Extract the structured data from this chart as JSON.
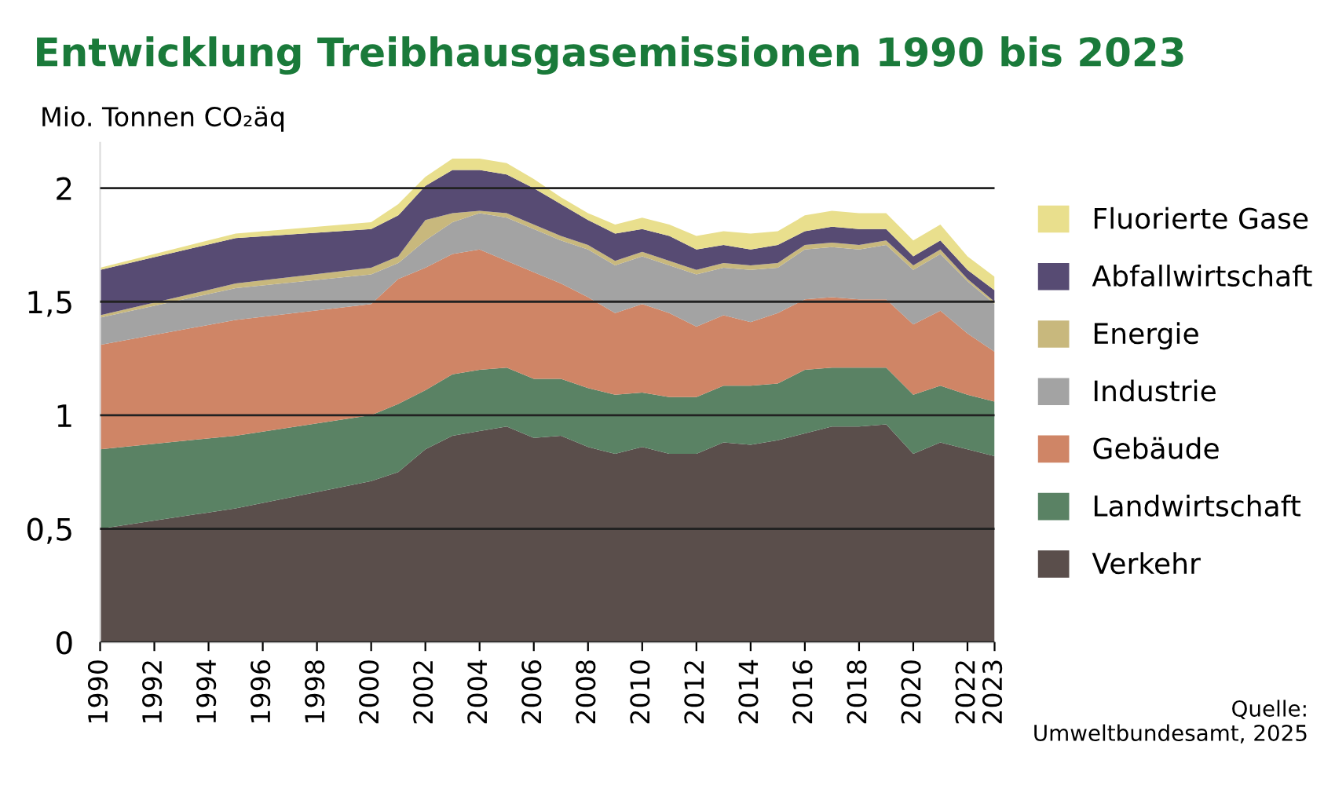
{
  "chart_data": {
    "type": "area",
    "stacked": true,
    "title": "Entwicklung Treibhausgasemissionen 1990 bis 2023",
    "ylabel": "Mio. Tonnen CO₂äq",
    "x": [
      1990,
      1995,
      2000,
      2001,
      2002,
      2003,
      2004,
      2005,
      2006,
      2007,
      2008,
      2009,
      2010,
      2011,
      2012,
      2013,
      2014,
      2015,
      2016,
      2017,
      2018,
      2019,
      2020,
      2021,
      2022,
      2023
    ],
    "series": [
      {
        "name": "Verkehr",
        "color": "#5a4e4b",
        "values": [
          0.5,
          0.59,
          0.71,
          0.75,
          0.85,
          0.91,
          0.93,
          0.95,
          0.9,
          0.91,
          0.86,
          0.83,
          0.86,
          0.83,
          0.83,
          0.88,
          0.87,
          0.89,
          0.92,
          0.95,
          0.95,
          0.96,
          0.83,
          0.88,
          0.85,
          0.82
        ]
      },
      {
        "name": "Landwirtschaft",
        "color": "#5a8264",
        "values": [
          0.35,
          0.32,
          0.29,
          0.3,
          0.26,
          0.27,
          0.27,
          0.26,
          0.26,
          0.25,
          0.26,
          0.26,
          0.24,
          0.25,
          0.25,
          0.25,
          0.26,
          0.25,
          0.28,
          0.26,
          0.26,
          0.25,
          0.26,
          0.25,
          0.24,
          0.24
        ]
      },
      {
        "name": "Gebäude",
        "color": "#cf8566",
        "values": [
          0.46,
          0.51,
          0.49,
          0.55,
          0.54,
          0.53,
          0.53,
          0.47,
          0.47,
          0.42,
          0.4,
          0.36,
          0.39,
          0.37,
          0.31,
          0.31,
          0.28,
          0.31,
          0.31,
          0.31,
          0.3,
          0.3,
          0.31,
          0.33,
          0.27,
          0.22
        ]
      },
      {
        "name": "Industrie",
        "color": "#a3a3a3",
        "values": [
          0.12,
          0.14,
          0.13,
          0.07,
          0.12,
          0.14,
          0.16,
          0.19,
          0.19,
          0.19,
          0.21,
          0.21,
          0.21,
          0.21,
          0.23,
          0.21,
          0.23,
          0.2,
          0.22,
          0.22,
          0.22,
          0.24,
          0.24,
          0.25,
          0.23,
          0.21
        ]
      },
      {
        "name": "Energie",
        "color": "#c8b87d",
        "values": [
          0.01,
          0.02,
          0.03,
          0.03,
          0.09,
          0.04,
          0.01,
          0.02,
          0.02,
          0.02,
          0.02,
          0.02,
          0.02,
          0.02,
          0.02,
          0.02,
          0.02,
          0.02,
          0.02,
          0.02,
          0.02,
          0.02,
          0.02,
          0.02,
          0.01,
          0.01
        ]
      },
      {
        "name": "Abfallwirtschaft",
        "color": "#574b73",
        "values": [
          0.2,
          0.2,
          0.17,
          0.18,
          0.15,
          0.19,
          0.18,
          0.17,
          0.16,
          0.14,
          0.11,
          0.12,
          0.1,
          0.11,
          0.09,
          0.08,
          0.07,
          0.08,
          0.06,
          0.07,
          0.07,
          0.05,
          0.04,
          0.04,
          0.04,
          0.05
        ]
      },
      {
        "name": "Fluorierte Gase",
        "color": "#e9df8d",
        "values": [
          0.01,
          0.02,
          0.03,
          0.05,
          0.04,
          0.05,
          0.05,
          0.05,
          0.04,
          0.03,
          0.03,
          0.04,
          0.05,
          0.05,
          0.06,
          0.06,
          0.07,
          0.06,
          0.07,
          0.07,
          0.07,
          0.07,
          0.07,
          0.07,
          0.06,
          0.06
        ]
      }
    ],
    "xlim": [
      1990,
      2023
    ],
    "xticks": [
      1990,
      1992,
      1994,
      1996,
      1998,
      2000,
      2002,
      2004,
      2006,
      2008,
      2010,
      2012,
      2014,
      2016,
      2018,
      2020,
      2022,
      2023
    ],
    "ylim": [
      0,
      2.2
    ],
    "yticks": [
      0,
      {
        "value": 0.5,
        "label": "0,5"
      },
      1,
      {
        "value": 1.5,
        "label": "1,5"
      },
      2
    ],
    "grid": "y",
    "legend": "right",
    "annotations": [
      "Quelle:\nUmweltbundesamt, 2025"
    ]
  }
}
